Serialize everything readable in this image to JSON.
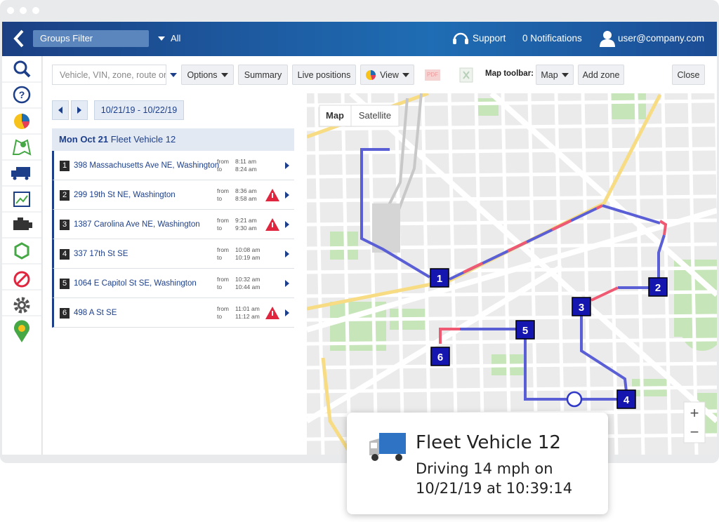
{
  "header": {
    "filter_placeholder": "Groups Filter",
    "filter_value": "All",
    "support": "Support",
    "notifications": "0 Notifications",
    "user": "user@company.com"
  },
  "toolbar": {
    "search_placeholder": "Vehicle, VIN, zone, route or",
    "options": "Options",
    "summary": "Summary",
    "live_positions": "Live positions",
    "view": "View",
    "pdf": "PDF",
    "map_toolbar_label": "Map toolbar:",
    "map": "Map",
    "add_zone": "Add zone",
    "close": "Close"
  },
  "date_range": "10/21/19 - 10/22/19",
  "trip": {
    "day": "Mon Oct 21",
    "vehicle": "Fleet Vehicle 12",
    "from_label": "from",
    "to_label": "to",
    "stops": [
      {
        "number": 1,
        "address": "398 Massachusetts Ave NE, Washington",
        "from": "8:11 am",
        "to": "8:24 am",
        "alert": false
      },
      {
        "number": 2,
        "address": "299 19th St NE, Washington",
        "from": "8:36 am",
        "to": "8:58 am",
        "alert": true
      },
      {
        "number": 3,
        "address": "1387 Carolina Ave NE, Washington",
        "from": "9:21 am",
        "to": "9:30 am",
        "alert": true
      },
      {
        "number": 4,
        "address": "337 17th St SE",
        "from": "10:08 am",
        "to": "10:19 am",
        "alert": false
      },
      {
        "number": 5,
        "address": "1064 E Capitol St SE, Washington",
        "from": "10:32 am",
        "to": "10:44 am",
        "alert": false
      },
      {
        "number": 6,
        "address": "498 A St SE",
        "from": "11:01 am",
        "to": "11:12 am",
        "alert": true
      }
    ]
  },
  "map": {
    "map_button": "Map",
    "satellite_button": "Satellite",
    "zoom_in": "+",
    "zoom_out": "−"
  },
  "popup": {
    "title": "Fleet Vehicle 12",
    "status": "Driving 14 mph on",
    "timestamp": "10/21/19 at 10:39:14"
  }
}
